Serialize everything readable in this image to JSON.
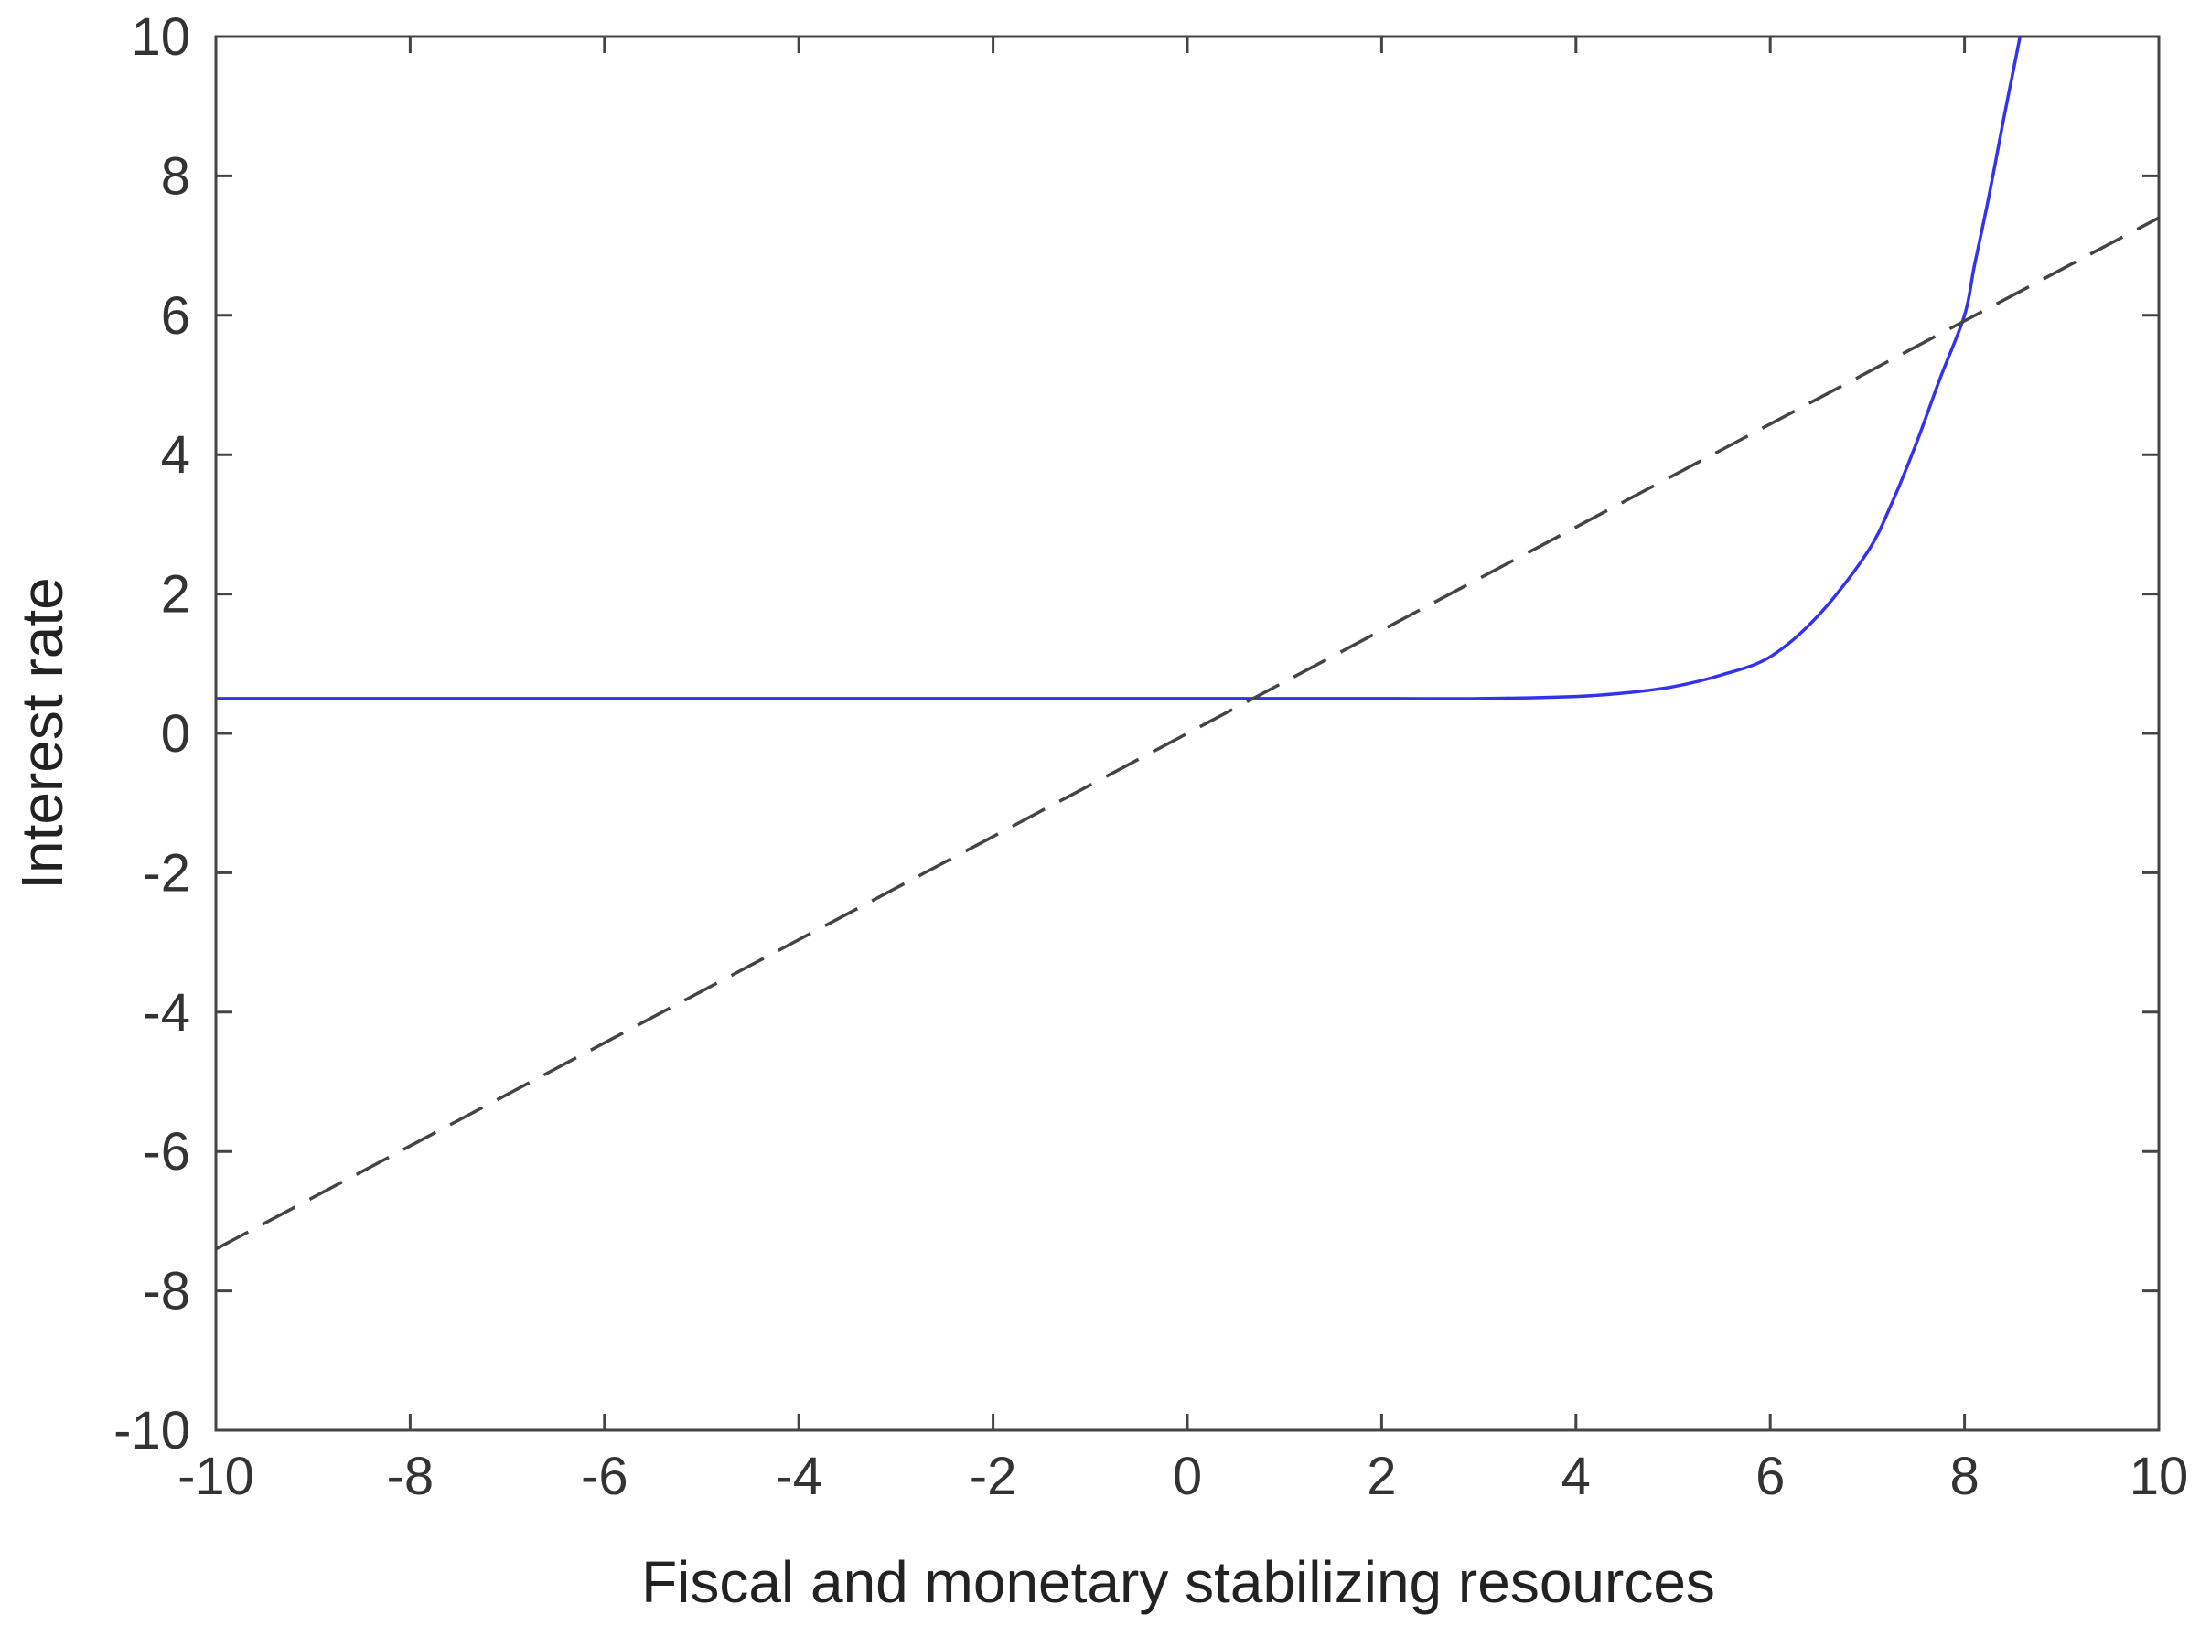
{
  "chart_data": {
    "type": "line",
    "xlabel": "Fiscal and monetary stabilizing resources",
    "ylabel": "Interest rate",
    "xlim": [
      -10,
      10
    ],
    "ylim": [
      -10,
      10
    ],
    "xticks": [
      -10,
      -8,
      -6,
      -4,
      -2,
      0,
      2,
      4,
      6,
      8,
      10
    ],
    "yticks": [
      -10,
      -8,
      -6,
      -4,
      -2,
      0,
      2,
      4,
      6,
      8,
      10
    ],
    "xtick_labels": [
      "-10",
      "-8",
      "-6",
      "-4",
      "-2",
      "0",
      "2",
      "4",
      "6",
      "8",
      "10"
    ],
    "ytick_labels": [
      "-10",
      "-8",
      "-6",
      "-4",
      "-2",
      "0",
      "2",
      "4",
      "6",
      "8",
      "10"
    ],
    "grid": false,
    "series": [
      {
        "style": "solid",
        "color": "#3333ee",
        "x": [
          -10,
          -6,
          -2,
          0,
          2,
          3,
          4,
          4.5,
          5,
          5.5,
          6,
          6.5,
          7,
          7.25,
          7.5,
          7.75,
          8,
          8.1,
          8.25,
          8.4,
          8.5,
          8.6
        ],
        "y": [
          0.5,
          0.5,
          0.5,
          0.5,
          0.5,
          0.5,
          0.53,
          0.58,
          0.67,
          0.84,
          1.1,
          1.7,
          2.6,
          3.3,
          4.15,
          5.1,
          6.0,
          6.7,
          7.7,
          8.8,
          9.5,
          10.2
        ]
      },
      {
        "style": "dashed",
        "color": "#444444",
        "x": [
          -10,
          10
        ],
        "y": [
          -7.4,
          7.4
        ]
      }
    ]
  }
}
